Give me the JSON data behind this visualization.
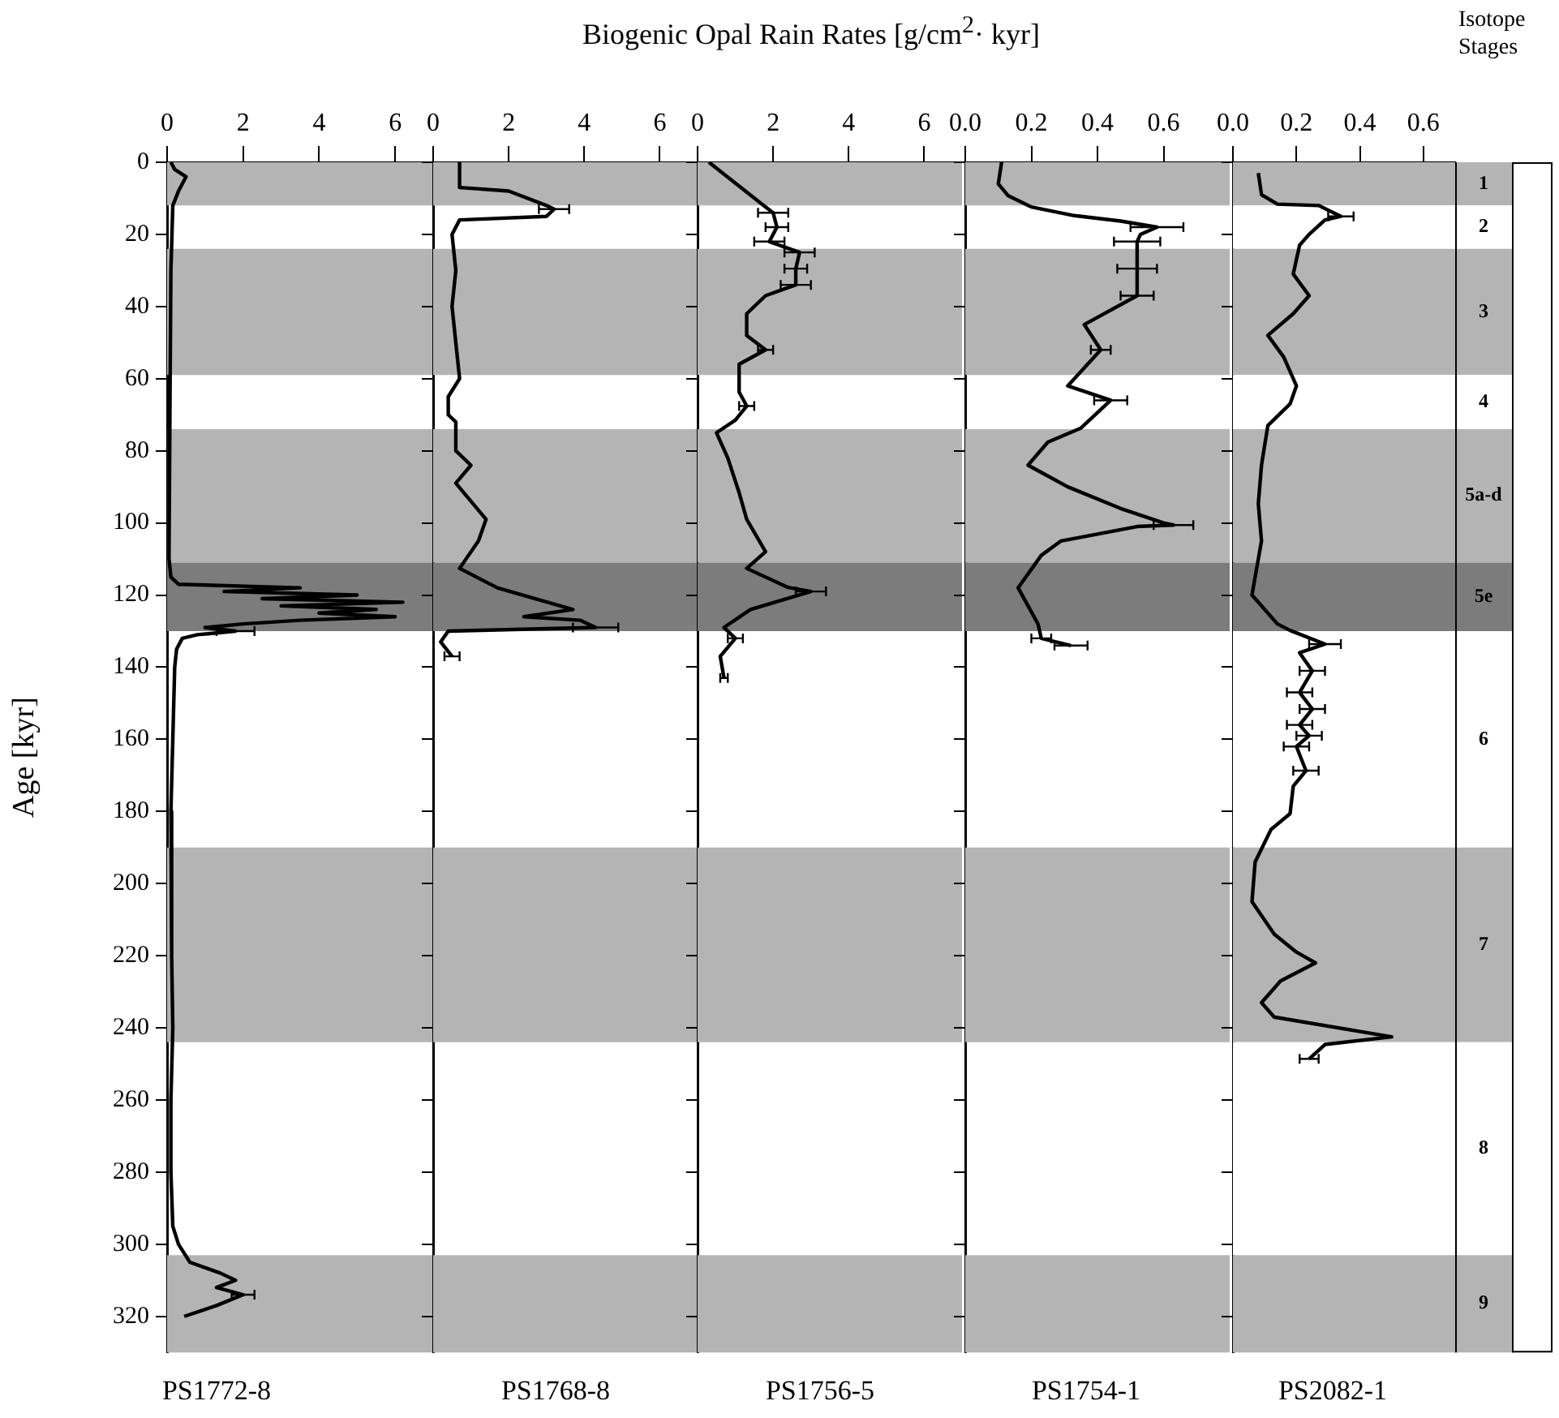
{
  "chart_data": [
    {
      "type": "line",
      "orientation": "horizontal",
      "title": "PS1772-8",
      "xlabel": "Biogenic Opal Rain Rates [g/cm$^{2}$· kyr]",
      "ylabel": "Age [kyr]",
      "xlim": [
        0,
        7
      ],
      "xticks": [
        0,
        2,
        4,
        6
      ],
      "ylim": [
        330,
        0
      ],
      "yticks": [
        0,
        20,
        40,
        60,
        80,
        100,
        120,
        140,
        160,
        180,
        200,
        220,
        240,
        260,
        280,
        300,
        320
      ],
      "bands": [
        {
          "axis": "y",
          "from": 0,
          "to": 12,
          "color": "#b4b4b4"
        },
        {
          "axis": "y",
          "from": 24,
          "to": 59,
          "color": "#b4b4b4"
        },
        {
          "axis": "y",
          "from": 74,
          "to": 111,
          "color": "#b4b4b4"
        },
        {
          "axis": "y",
          "from": 111,
          "to": 130,
          "color": "#7c7c7c"
        },
        {
          "axis": "y",
          "from": 190,
          "to": 244,
          "color": "#b4b4b4"
        },
        {
          "axis": "y",
          "from": 303,
          "to": 330,
          "color": "#b4b4b4"
        }
      ],
      "series": [
        {
          "color": "#000000",
          "x": [
            0,
            2,
            4,
            8,
            12,
            30,
            60,
            90,
            110,
            115,
            117,
            118,
            119,
            120,
            121,
            122,
            123,
            124,
            125,
            126,
            127,
            128,
            129,
            130,
            131,
            132,
            135,
            140,
            160,
            180,
            200,
            220,
            240,
            260,
            280,
            295,
            300,
            305,
            308,
            310,
            312,
            314,
            317,
            320
          ],
          "values": [
            0.1,
            0.2,
            0.5,
            0.3,
            0.15,
            0.1,
            0.08,
            0.05,
            0.05,
            0.1,
            0.3,
            3.5,
            1.5,
            5.0,
            2.5,
            6.2,
            3.0,
            5.5,
            4.0,
            6.0,
            3.5,
            2.0,
            1.0,
            1.8,
            0.8,
            0.4,
            0.25,
            0.2,
            0.15,
            0.1,
            0.12,
            0.12,
            0.15,
            0.1,
            0.1,
            0.15,
            0.3,
            0.6,
            1.4,
            1.8,
            1.3,
            2.0,
            1.3,
            0.45
          ],
          "errors": [
            null,
            null,
            null,
            null,
            null,
            null,
            null,
            null,
            null,
            null,
            null,
            null,
            null,
            null,
            null,
            null,
            null,
            null,
            null,
            null,
            null,
            null,
            null,
            0.5,
            null,
            null,
            null,
            null,
            null,
            null,
            null,
            null,
            null,
            null,
            null,
            null,
            null,
            null,
            null,
            null,
            null,
            0.3,
            null,
            null
          ]
        }
      ]
    },
    {
      "type": "line",
      "orientation": "horizontal",
      "title": "PS1768-8",
      "xlim": [
        0,
        7
      ],
      "xticks": [
        0,
        2,
        4,
        6
      ],
      "ylim": [
        330,
        0
      ],
      "yticks": [
        0,
        20,
        40,
        60,
        80,
        100,
        120,
        140,
        160,
        180,
        200,
        220,
        240,
        260,
        280,
        300,
        320
      ],
      "tick_labels": "x",
      "bands": [
        {
          "axis": "y",
          "from": 0,
          "to": 12,
          "color": "#b4b4b4"
        },
        {
          "axis": "y",
          "from": 24,
          "to": 59,
          "color": "#b4b4b4"
        },
        {
          "axis": "y",
          "from": 74,
          "to": 111,
          "color": "#b4b4b4"
        },
        {
          "axis": "y",
          "from": 111,
          "to": 130,
          "color": "#7c7c7c"
        },
        {
          "axis": "y",
          "from": 190,
          "to": 244,
          "color": "#b4b4b4"
        },
        {
          "axis": "y",
          "from": 303,
          "to": 330,
          "color": "#b4b4b4"
        }
      ],
      "series": [
        {
          "color": "#000000",
          "x": [
            0,
            7,
            8,
            12,
            13,
            15,
            16,
            20,
            30,
            40,
            50,
            60,
            65,
            70,
            72,
            80,
            84,
            89,
            99,
            105,
            112.6,
            118,
            124,
            126,
            127,
            129,
            130,
            133,
            137
          ],
          "values": [
            0.7,
            0.7,
            2.0,
            3.0,
            3.2,
            3.0,
            0.7,
            0.5,
            0.6,
            0.5,
            0.6,
            0.7,
            0.4,
            0.4,
            0.6,
            0.6,
            1.0,
            0.6,
            1.4,
            1.2,
            0.7,
            1.7,
            3.7,
            2.4,
            3.9,
            4.3,
            0.4,
            0.2,
            0.5
          ],
          "errors": [
            null,
            null,
            null,
            null,
            0.4,
            null,
            null,
            null,
            null,
            null,
            null,
            null,
            null,
            null,
            null,
            null,
            null,
            null,
            null,
            null,
            null,
            null,
            null,
            null,
            null,
            0.6,
            null,
            null,
            0.2
          ]
        }
      ]
    },
    {
      "type": "line",
      "orientation": "horizontal",
      "title": "PS1756-5",
      "xlim": [
        0,
        7
      ],
      "xticks": [
        0,
        2,
        4,
        6
      ],
      "ylim": [
        330,
        0
      ],
      "yticks": [
        0,
        20,
        40,
        60,
        80,
        100,
        120,
        140,
        160,
        180,
        200,
        220,
        240,
        260,
        280,
        300,
        320
      ],
      "tick_labels": "x",
      "bands": [
        {
          "axis": "y",
          "from": 0,
          "to": 12,
          "color": "#b4b4b4"
        },
        {
          "axis": "y",
          "from": 24,
          "to": 59,
          "color": "#b4b4b4"
        },
        {
          "axis": "y",
          "from": 74,
          "to": 111,
          "color": "#b4b4b4"
        },
        {
          "axis": "y",
          "from": 111,
          "to": 130,
          "color": "#7c7c7c"
        },
        {
          "axis": "y",
          "from": 190,
          "to": 244,
          "color": "#b4b4b4"
        },
        {
          "axis": "y",
          "from": 303,
          "to": 330,
          "color": "#b4b4b4"
        }
      ],
      "series": [
        {
          "color": "#000000",
          "x": [
            0,
            11.6,
            14,
            18,
            22,
            25,
            29.5,
            34,
            37,
            42,
            48,
            52,
            56,
            63.7,
            67.6,
            71.5,
            75,
            82,
            91.6,
            99,
            108,
            112.6,
            117.9,
            119,
            124,
            129,
            132,
            137,
            143
          ],
          "values": [
            0.3,
            1.7,
            2.0,
            2.1,
            1.9,
            2.7,
            2.6,
            2.6,
            1.8,
            1.3,
            1.3,
            1.8,
            1.1,
            1.1,
            1.3,
            1.0,
            0.5,
            0.8,
            1.1,
            1.3,
            1.8,
            1.3,
            2.4,
            3.0,
            1.4,
            0.7,
            1.0,
            0.6,
            0.7
          ],
          "errors": [
            null,
            null,
            0.4,
            0.3,
            0.4,
            0.4,
            0.3,
            0.4,
            null,
            null,
            null,
            0.2,
            null,
            null,
            0.2,
            null,
            null,
            null,
            null,
            null,
            null,
            null,
            null,
            0.4,
            null,
            null,
            0.2,
            null,
            0.1
          ]
        }
      ]
    },
    {
      "type": "line",
      "orientation": "horizontal",
      "title": "PS1754-1",
      "xlim": [
        0,
        0.8
      ],
      "xticks": [
        {
          "value": 0,
          "label": "0.0"
        },
        {
          "value": 0.2,
          "label": "0.2"
        },
        {
          "value": 0.4,
          "label": "0.4"
        },
        {
          "value": 0.6,
          "label": "0.6"
        }
      ],
      "ylim": [
        330,
        0
      ],
      "yticks": [
        0,
        20,
        40,
        60,
        80,
        100,
        120,
        140,
        160,
        180,
        200,
        220,
        240,
        260,
        280,
        300,
        320
      ],
      "tick_labels": "x",
      "bands": [
        {
          "axis": "y",
          "from": 0,
          "to": 12,
          "color": "#b4b4b4"
        },
        {
          "axis": "y",
          "from": 24,
          "to": 59,
          "color": "#b4b4b4"
        },
        {
          "axis": "y",
          "from": 74,
          "to": 111,
          "color": "#b4b4b4"
        },
        {
          "axis": "y",
          "from": 111,
          "to": 130,
          "color": "#7c7c7c"
        },
        {
          "axis": "y",
          "from": 190,
          "to": 244,
          "color": "#b4b4b4"
        },
        {
          "axis": "y",
          "from": 303,
          "to": 330,
          "color": "#b4b4b4"
        }
      ],
      "series": [
        {
          "color": "#000000",
          "x": [
            0,
            6,
            9.3,
            12.4,
            14.8,
            16.3,
            18,
            20,
            22,
            29.5,
            37,
            45,
            52,
            62,
            66,
            73.7,
            77.6,
            84,
            90,
            96,
            100,
            100.6,
            101,
            105,
            109,
            118,
            128,
            132,
            134
          ],
          "values": [
            0.11,
            0.1,
            0.13,
            0.2,
            0.33,
            0.47,
            0.58,
            0.53,
            0.52,
            0.52,
            0.52,
            0.36,
            0.41,
            0.31,
            0.44,
            0.35,
            0.25,
            0.19,
            0.31,
            0.47,
            0.6,
            0.63,
            0.52,
            0.29,
            0.23,
            0.16,
            0.22,
            0.23,
            0.32
          ],
          "errors": [
            null,
            null,
            null,
            null,
            null,
            null,
            0.08,
            null,
            0.07,
            0.06,
            0.05,
            null,
            0.03,
            null,
            0.05,
            null,
            null,
            null,
            null,
            null,
            null,
            0.06,
            null,
            null,
            null,
            null,
            null,
            0.03,
            0.05
          ]
        }
      ]
    },
    {
      "type": "line",
      "orientation": "horizontal",
      "title": "PS2082-1",
      "annotations": [
        "Isotope Stages"
      ],
      "xlim": [
        0,
        0.7
      ],
      "xticks": [
        {
          "value": 0,
          "label": "0.0"
        },
        {
          "value": 0.2,
          "label": "0.2"
        },
        {
          "value": 0.4,
          "label": "0.4"
        },
        {
          "value": 0.6,
          "label": "0.6"
        }
      ],
      "ylim": [
        330,
        0
      ],
      "yticks": [
        0,
        20,
        40,
        60,
        80,
        100,
        120,
        140,
        160,
        180,
        200,
        220,
        240,
        260,
        280,
        300,
        320
      ],
      "tick_labels": "x",
      "bands": [
        {
          "axis": "y",
          "from": 0,
          "to": 12,
          "color": "#b4b4b4",
          "label": "1"
        },
        {
          "axis": "y",
          "from": 12,
          "to": 24,
          "color": "#ffffff",
          "label": "2"
        },
        {
          "axis": "y",
          "from": 24,
          "to": 59,
          "color": "#b4b4b4",
          "label": "3"
        },
        {
          "axis": "y",
          "from": 59,
          "to": 74,
          "color": "#ffffff",
          "label": "4"
        },
        {
          "axis": "y",
          "from": 74,
          "to": 111,
          "color": "#b4b4b4",
          "label": "5a-d"
        },
        {
          "axis": "y",
          "from": 111,
          "to": 130,
          "color": "#7c7c7c",
          "label": "5e"
        },
        {
          "axis": "y",
          "from": 130,
          "to": 190,
          "color": "#ffffff",
          "label": "6"
        },
        {
          "axis": "y",
          "from": 190,
          "to": 244,
          "color": "#b4b4b4",
          "label": "7"
        },
        {
          "axis": "y",
          "from": 244,
          "to": 303,
          "color": "#ffffff",
          "label": "8"
        },
        {
          "axis": "y",
          "from": 303,
          "to": 330,
          "color": "#b4b4b4",
          "label": "9"
        }
      ],
      "series": [
        {
          "color": "#000000",
          "x": [
            3,
            9,
            11.6,
            12,
            15,
            16,
            20,
            23,
            31,
            37,
            42,
            48,
            54,
            62,
            67,
            73,
            84,
            94.7,
            105,
            120,
            128,
            129.8,
            133.6,
            136,
            141,
            147,
            151.6,
            156,
            159,
            162,
            168.7,
            173,
            180.6,
            185,
            194,
            205,
            214,
            219,
            222,
            227,
            233,
            237,
            242.5,
            244.6,
            248.6
          ],
          "values": [
            0.08,
            0.09,
            0.14,
            0.27,
            0.34,
            0.29,
            0.24,
            0.21,
            0.19,
            0.24,
            0.19,
            0.11,
            0.16,
            0.2,
            0.18,
            0.11,
            0.09,
            0.08,
            0.09,
            0.06,
            0.14,
            0.18,
            0.29,
            0.21,
            0.25,
            0.21,
            0.25,
            0.21,
            0.24,
            0.2,
            0.23,
            0.19,
            0.18,
            0.12,
            0.07,
            0.06,
            0.13,
            0.2,
            0.26,
            0.15,
            0.09,
            0.13,
            0.5,
            0.29,
            0.24
          ],
          "errors": [
            null,
            null,
            null,
            null,
            0.04,
            null,
            null,
            null,
            null,
            null,
            null,
            null,
            null,
            null,
            null,
            null,
            null,
            null,
            null,
            null,
            null,
            null,
            0.05,
            null,
            0.04,
            0.04,
            0.04,
            0.04,
            0.04,
            0.04,
            0.04,
            null,
            null,
            null,
            null,
            null,
            null,
            null,
            null,
            null,
            null,
            null,
            null,
            null,
            0.03
          ]
        }
      ]
    }
  ]
}
